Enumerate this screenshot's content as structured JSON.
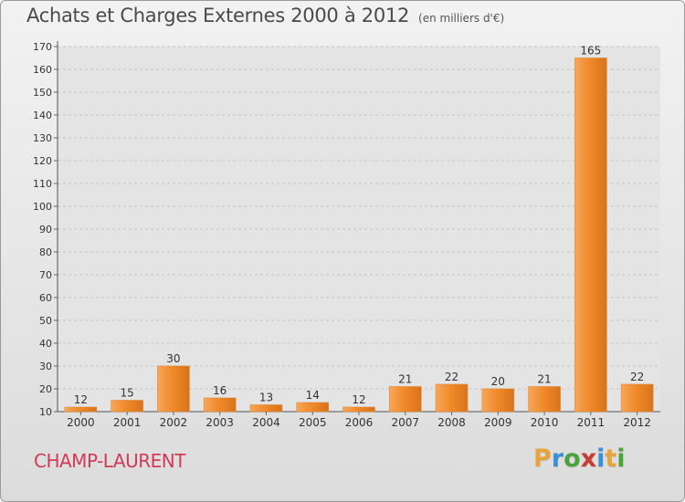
{
  "header": {
    "title": "Achats et Charges Externes 2000 à 2012",
    "unit": "(en milliers d'€)"
  },
  "footer": {
    "commune": "CHAMP-LAURENT",
    "logo_letters": [
      "P",
      "r",
      "o",
      "x",
      "i",
      "t",
      "i"
    ],
    "logo_colors": [
      "#e8a33a",
      "#3c8fd6",
      "#4aa33b",
      "#c93c33",
      "#3c8fd6",
      "#e8a33a",
      "#4aa33b"
    ]
  },
  "colors": {
    "bar": "#f08a2a",
    "bar_light": "#f6a75a",
    "bar_dark": "#d9731b",
    "grid": "#c4c4c4",
    "text": "#333333"
  },
  "chart_data": {
    "type": "bar",
    "categories": [
      "2000",
      "2001",
      "2002",
      "2003",
      "2004",
      "2005",
      "2006",
      "2007",
      "2008",
      "2009",
      "2010",
      "2011",
      "2012"
    ],
    "values": [
      12,
      15,
      30,
      16,
      13,
      14,
      12,
      21,
      22,
      20,
      21,
      165,
      22
    ],
    "data_labels": [
      "12",
      "15",
      "30",
      "16",
      "13",
      "14",
      "12",
      "21",
      "22",
      "20",
      "21",
      "165",
      "22"
    ],
    "y_ticks": [
      10,
      20,
      30,
      40,
      50,
      60,
      70,
      80,
      90,
      100,
      110,
      120,
      130,
      140,
      150,
      160,
      170
    ],
    "ylim": [
      10,
      170
    ],
    "grid": "horizontal",
    "legend": "none"
  }
}
